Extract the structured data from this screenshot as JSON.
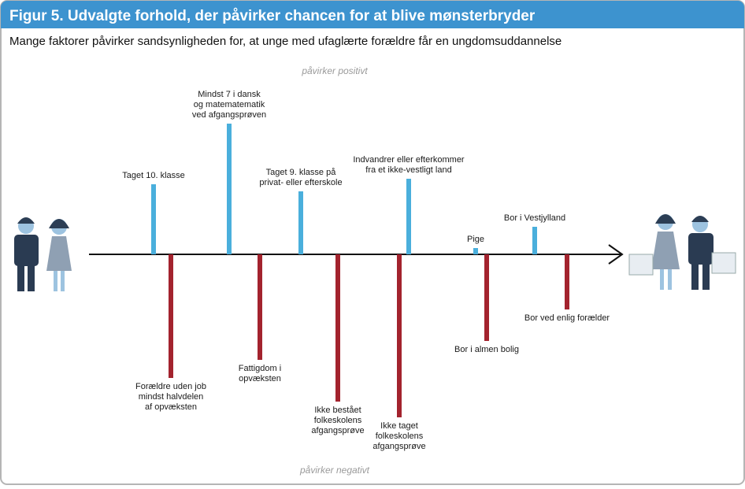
{
  "chart_data": {
    "type": "bar",
    "title": "Figur 5. Udvalgte forhold, der påvirker chancen for at blive mønsterbryder",
    "subtitle": "Mange faktorer påvirker sandsynligheden for, at unge med ufaglærte forældre får en ungdomsuddannelse",
    "positive_label": "påvirker positivt",
    "negative_label": "påvirker negativt",
    "categories": [
      [
        "Taget 10. klasse"
      ],
      [
        "Forældre uden job",
        "mindst halvdelen",
        "af opvæksten"
      ],
      [
        "Mindst 7 i dansk",
        "og matematematik",
        "ved afgangsprøven"
      ],
      [
        "Fattigdom i",
        "opvæksten"
      ],
      [
        "Taget 9. klasse på",
        "privat- eller efterskole"
      ],
      [
        "Ikke bestået",
        "folkeskolens",
        "afgangsprøve"
      ],
      [
        "Ikke taget",
        "folkeskolens",
        "afgangsprøve"
      ],
      [
        "Indvandrer eller efterkommer",
        "fra et ikke-vestligt land"
      ],
      [
        "Pige"
      ],
      [
        "Bor i almen bolig"
      ],
      [
        "Bor i Vestjylland"
      ],
      [
        "Bor ved enlig forælder"
      ]
    ],
    "values": [
      89,
      -157,
      166,
      -134,
      80,
      -187,
      -207,
      96,
      8,
      -110,
      35,
      -70
    ],
    "positive_color": "#4aafdc",
    "negative_color": "#a3232e"
  }
}
